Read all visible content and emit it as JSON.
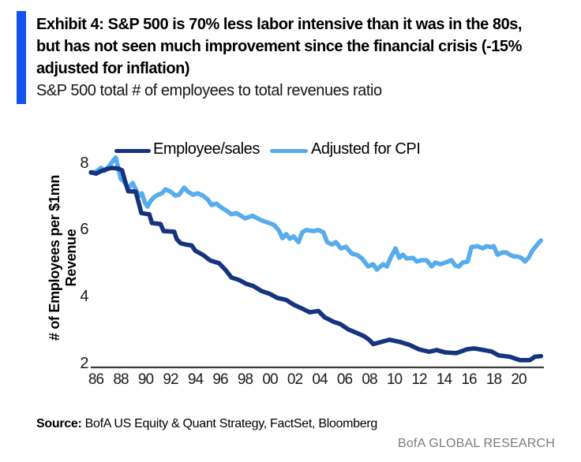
{
  "header": {
    "title_lines": [
      "Exhibit 4: S&P 500 is 70% less labor intensive than it was in the 80s,",
      "but has not seen much improvement since the financial crisis (-15%",
      "adjusted for inflation)"
    ],
    "subtitle": "S&P 500 total # of employees to total revenues ratio",
    "accent_bar_color": "#1253EC"
  },
  "footer": {
    "source_label": "Source:",
    "source_text": " BofA US Equity & Quant Strategy, FactSet, Bloomberg",
    "branding": "BofA GLOBAL RESEARCH",
    "branding_color": "#7b7b7b"
  },
  "chart_data": {
    "type": "line",
    "title": "S&P 500 total # of employees to total revenues ratio",
    "xlabel": "",
    "ylabel_lines": [
      "# of Employees per $1mn",
      "Revenue"
    ],
    "legend_position": "top",
    "grid": false,
    "xlim": [
      1985.5,
      2022.3
    ],
    "ylim": [
      1.9,
      8.4
    ],
    "y_ticks": [
      8,
      6,
      4,
      2
    ],
    "x_tick_labels": [
      "86",
      "88",
      "90",
      "92",
      "94",
      "96",
      "98",
      "00",
      "02",
      "04",
      "06",
      "08",
      "10",
      "12",
      "14",
      "16",
      "18",
      "20"
    ],
    "x_tick_start_year": 1986,
    "x_tick_step_years": 2,
    "axis_color": "#3d3d3d",
    "series": [
      {
        "name": "Employee/sales",
        "color": "#16337F",
        "points": [
          [
            1985.6,
            7.72
          ],
          [
            1986.0,
            7.68
          ],
          [
            1986.4,
            7.75
          ],
          [
            1986.9,
            7.82
          ],
          [
            1987.3,
            7.85
          ],
          [
            1987.8,
            7.83
          ],
          [
            1988.1,
            7.78
          ],
          [
            1988.35,
            7.45
          ],
          [
            1988.6,
            7.15
          ],
          [
            1989.2,
            7.14
          ],
          [
            1989.45,
            6.8
          ],
          [
            1989.65,
            6.5
          ],
          [
            1990.3,
            6.46
          ],
          [
            1990.5,
            6.2
          ],
          [
            1991.2,
            6.17
          ],
          [
            1991.45,
            5.96
          ],
          [
            1992.3,
            5.94
          ],
          [
            1992.5,
            5.72
          ],
          [
            1992.8,
            5.6
          ],
          [
            1993.2,
            5.56
          ],
          [
            1993.7,
            5.53
          ],
          [
            1994.0,
            5.37
          ],
          [
            1994.6,
            5.25
          ],
          [
            1995.2,
            5.08
          ],
          [
            1995.9,
            5.0
          ],
          [
            1996.4,
            4.81
          ],
          [
            1996.9,
            4.57
          ],
          [
            1997.5,
            4.5
          ],
          [
            1998.1,
            4.38
          ],
          [
            1998.7,
            4.31
          ],
          [
            1999.3,
            4.17
          ],
          [
            2000.0,
            4.08
          ],
          [
            2000.6,
            3.96
          ],
          [
            2001.3,
            3.9
          ],
          [
            2001.9,
            3.76
          ],
          [
            2002.6,
            3.64
          ],
          [
            2003.2,
            3.53
          ],
          [
            2003.9,
            3.57
          ],
          [
            2004.4,
            3.38
          ],
          [
            2005.1,
            3.25
          ],
          [
            2005.7,
            3.17
          ],
          [
            2006.3,
            3.02
          ],
          [
            2007.0,
            2.91
          ],
          [
            2007.6,
            2.81
          ],
          [
            2008.0,
            2.7
          ],
          [
            2008.3,
            2.58
          ],
          [
            2008.9,
            2.64
          ],
          [
            2009.6,
            2.71
          ],
          [
            2010.5,
            2.64
          ],
          [
            2011.2,
            2.56
          ],
          [
            2012.0,
            2.42
          ],
          [
            2012.8,
            2.35
          ],
          [
            2013.4,
            2.4
          ],
          [
            2014.1,
            2.33
          ],
          [
            2015.0,
            2.31
          ],
          [
            2015.8,
            2.42
          ],
          [
            2016.4,
            2.45
          ],
          [
            2017.2,
            2.4
          ],
          [
            2017.8,
            2.36
          ],
          [
            2018.4,
            2.24
          ],
          [
            2019.3,
            2.2
          ],
          [
            2020.1,
            2.1
          ],
          [
            2020.9,
            2.1
          ],
          [
            2021.3,
            2.2
          ],
          [
            2021.8,
            2.22
          ]
        ]
      },
      {
        "name": "Adjusted for CPI",
        "color": "#56ACEC",
        "points": [
          [
            1985.6,
            7.7
          ],
          [
            1986.0,
            7.73
          ],
          [
            1986.4,
            7.85
          ],
          [
            1986.7,
            7.76
          ],
          [
            1987.1,
            7.92
          ],
          [
            1987.45,
            8.1
          ],
          [
            1987.6,
            8.16
          ],
          [
            1987.8,
            7.85
          ],
          [
            1988.0,
            7.52
          ],
          [
            1988.25,
            7.45
          ],
          [
            1988.5,
            7.3
          ],
          [
            1988.7,
            7.28
          ],
          [
            1988.95,
            7.4
          ],
          [
            1989.3,
            7.14
          ],
          [
            1989.5,
            7.02
          ],
          [
            1989.7,
            7.09
          ],
          [
            1989.95,
            6.81
          ],
          [
            1990.15,
            6.69
          ],
          [
            1990.4,
            6.86
          ],
          [
            1990.7,
            6.98
          ],
          [
            1991.0,
            7.05
          ],
          [
            1991.3,
            7.09
          ],
          [
            1991.6,
            7.21
          ],
          [
            1992.0,
            7.14
          ],
          [
            1992.4,
            7.02
          ],
          [
            1992.7,
            7.05
          ],
          [
            1993.1,
            7.26
          ],
          [
            1993.4,
            7.14
          ],
          [
            1993.8,
            7.05
          ],
          [
            1994.2,
            7.09
          ],
          [
            1994.6,
            7.02
          ],
          [
            1995.0,
            6.9
          ],
          [
            1995.3,
            6.74
          ],
          [
            1995.7,
            6.78
          ],
          [
            1996.1,
            6.66
          ],
          [
            1996.5,
            6.57
          ],
          [
            1996.9,
            6.46
          ],
          [
            1997.3,
            6.5
          ],
          [
            1998.0,
            6.34
          ],
          [
            1998.6,
            6.42
          ],
          [
            1999.2,
            6.3
          ],
          [
            1999.7,
            6.23
          ],
          [
            2000.3,
            6.15
          ],
          [
            2000.7,
            5.99
          ],
          [
            2001.0,
            5.75
          ],
          [
            2001.3,
            5.87
          ],
          [
            2001.6,
            5.73
          ],
          [
            2001.9,
            5.8
          ],
          [
            2002.3,
            5.63
          ],
          [
            2002.6,
            5.92
          ],
          [
            2002.9,
            5.99
          ],
          [
            2003.5,
            5.96
          ],
          [
            2003.9,
            5.99
          ],
          [
            2004.3,
            5.92
          ],
          [
            2004.6,
            5.63
          ],
          [
            2005.0,
            5.56
          ],
          [
            2005.3,
            5.63
          ],
          [
            2005.7,
            5.44
          ],
          [
            2006.1,
            5.49
          ],
          [
            2006.6,
            5.28
          ],
          [
            2007.0,
            5.25
          ],
          [
            2007.4,
            5.14
          ],
          [
            2007.9,
            4.9
          ],
          [
            2008.3,
            4.97
          ],
          [
            2008.6,
            4.81
          ],
          [
            2009.1,
            4.97
          ],
          [
            2009.4,
            4.9
          ],
          [
            2009.7,
            5.16
          ],
          [
            2010.1,
            5.44
          ],
          [
            2010.4,
            5.16
          ],
          [
            2010.7,
            5.25
          ],
          [
            2011.0,
            5.14
          ],
          [
            2011.5,
            5.16
          ],
          [
            2011.8,
            5.05
          ],
          [
            2012.2,
            5.09
          ],
          [
            2012.6,
            5.09
          ],
          [
            2013.0,
            4.9
          ],
          [
            2013.3,
            5.02
          ],
          [
            2013.7,
            4.97
          ],
          [
            2014.1,
            5.02
          ],
          [
            2014.6,
            5.09
          ],
          [
            2014.9,
            4.93
          ],
          [
            2015.2,
            4.9
          ],
          [
            2015.5,
            5.02
          ],
          [
            2015.9,
            5.05
          ],
          [
            2016.2,
            5.48
          ],
          [
            2016.7,
            5.51
          ],
          [
            2017.1,
            5.44
          ],
          [
            2017.4,
            5.51
          ],
          [
            2017.8,
            5.48
          ],
          [
            2018.0,
            5.51
          ],
          [
            2018.3,
            5.25
          ],
          [
            2018.7,
            5.32
          ],
          [
            2019.0,
            5.32
          ],
          [
            2019.3,
            5.25
          ],
          [
            2019.6,
            5.2
          ],
          [
            2019.9,
            5.2
          ],
          [
            2020.2,
            5.16
          ],
          [
            2020.5,
            5.05
          ],
          [
            2020.8,
            5.16
          ],
          [
            2021.1,
            5.37
          ],
          [
            2021.5,
            5.56
          ],
          [
            2021.8,
            5.68
          ]
        ]
      }
    ]
  }
}
